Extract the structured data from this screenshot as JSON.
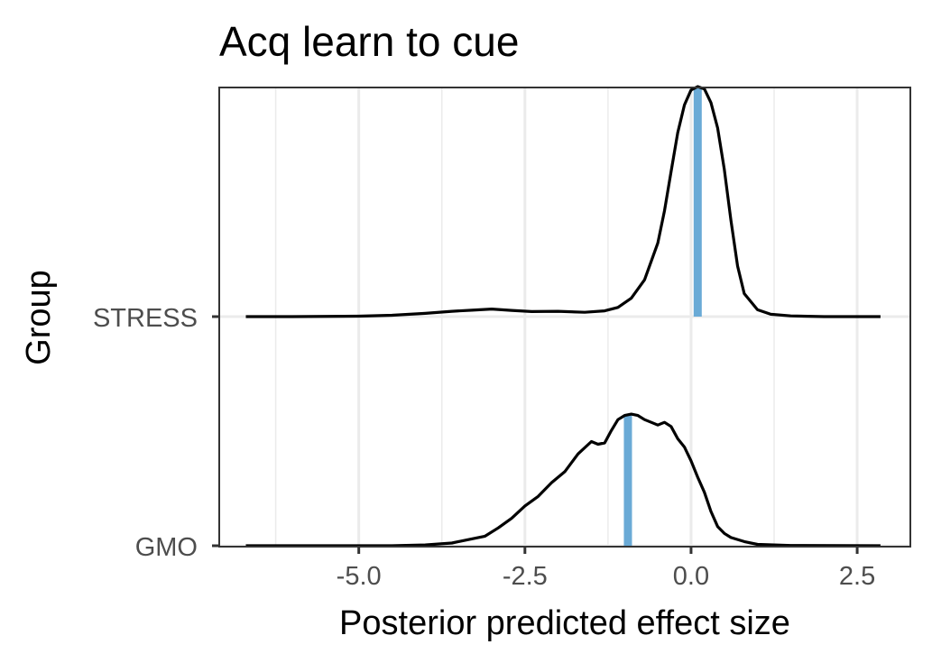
{
  "chart_data": {
    "type": "ridgeline",
    "title": "Acq learn to cue",
    "xlabel": "Posterior predicted effect size",
    "ylabel": "Group",
    "xlim": [
      -7.1,
      3.3
    ],
    "x_ticks": [
      -5.0,
      -2.5,
      0.0,
      2.5
    ],
    "x_tick_labels": [
      "-5.0",
      "-2.5",
      "0.0",
      "2.5"
    ],
    "grid": true,
    "groups": [
      {
        "name": "STRESS",
        "median": 0.1,
        "density_x": [
          -6.7,
          -6.0,
          -5.0,
          -4.5,
          -4.0,
          -3.6,
          -3.3,
          -3.0,
          -2.7,
          -2.4,
          -2.0,
          -1.6,
          -1.3,
          -1.1,
          -0.9,
          -0.7,
          -0.5,
          -0.4,
          -0.3,
          -0.2,
          -0.1,
          0.0,
          0.1,
          0.2,
          0.3,
          0.4,
          0.5,
          0.6,
          0.7,
          0.8,
          1.0,
          1.2,
          1.5,
          2.0,
          2.85
        ],
        "density_y": [
          0.0,
          0.0,
          0.002,
          0.006,
          0.014,
          0.023,
          0.028,
          0.033,
          0.027,
          0.022,
          0.023,
          0.019,
          0.025,
          0.04,
          0.08,
          0.16,
          0.32,
          0.46,
          0.63,
          0.8,
          0.92,
          0.985,
          1.0,
          0.99,
          0.93,
          0.82,
          0.64,
          0.42,
          0.22,
          0.1,
          0.03,
          0.01,
          0.003,
          0.0,
          0.0
        ]
      },
      {
        "name": "GMO",
        "median": -0.95,
        "density_x": [
          -6.7,
          -4.5,
          -4.0,
          -3.6,
          -3.3,
          -3.1,
          -2.9,
          -2.7,
          -2.5,
          -2.3,
          -2.1,
          -1.9,
          -1.7,
          -1.5,
          -1.4,
          -1.3,
          -1.2,
          -1.1,
          -1.0,
          -0.9,
          -0.8,
          -0.7,
          -0.6,
          -0.5,
          -0.4,
          -0.3,
          -0.2,
          -0.1,
          0.0,
          0.1,
          0.2,
          0.3,
          0.4,
          0.5,
          0.6,
          0.8,
          1.0,
          1.5,
          2.85
        ],
        "density_y": [
          0.0,
          0.0,
          0.006,
          0.02,
          0.05,
          0.07,
          0.13,
          0.2,
          0.29,
          0.36,
          0.46,
          0.54,
          0.67,
          0.76,
          0.74,
          0.75,
          0.84,
          0.92,
          0.95,
          0.96,
          0.95,
          0.92,
          0.9,
          0.88,
          0.9,
          0.87,
          0.78,
          0.72,
          0.62,
          0.5,
          0.39,
          0.25,
          0.14,
          0.09,
          0.06,
          0.03,
          0.01,
          0.002,
          0.0
        ]
      }
    ],
    "colors": {
      "median_line": "#6aaad6",
      "density_line": "#000000",
      "grid": "#ebebeb",
      "panel_border": "#333333",
      "tick_text": "#4d4d4d"
    }
  }
}
